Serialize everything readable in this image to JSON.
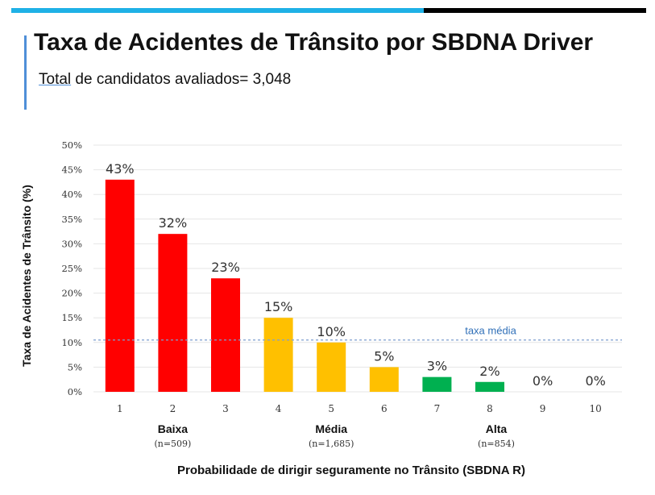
{
  "page": {
    "title": "Taxa de Acidentes de Trânsito por SBDNA Driver",
    "subtitle_total": "Total",
    "subtitle_rest": " de candidatos avaliados= 3,048"
  },
  "colors": {
    "top_bar_blue": "#1fb1e6",
    "top_bar_black": "#000000",
    "accent_bar": "#4f8fd8",
    "baixa": "#ff0000",
    "media": "#ffc000",
    "alta": "#00b050",
    "gridline": "#e6e6e6",
    "average_line": "#7f9fd0"
  },
  "chart_data": {
    "type": "bar",
    "categories": [
      "1",
      "2",
      "3",
      "4",
      "5",
      "6",
      "7",
      "8",
      "9",
      "10"
    ],
    "values": [
      43,
      32,
      23,
      15,
      10,
      5,
      3,
      2,
      0,
      0
    ],
    "data_labels": [
      "43%",
      "32%",
      "23%",
      "15%",
      "10%",
      "5%",
      "3%",
      "2%",
      "0%",
      "0%"
    ],
    "bar_groups": [
      "baixa",
      "baixa",
      "baixa",
      "media",
      "media",
      "media",
      "alta",
      "alta",
      "alta",
      "alta"
    ],
    "ylabel": "Taxa de Acidentes de Trânsito (%)",
    "xlabel": "Probabilidade de dirigir seguramente no Trânsito (SBDNA R)",
    "ylim": [
      0,
      50
    ],
    "yticks": [
      0,
      5,
      10,
      15,
      20,
      25,
      30,
      35,
      40,
      45,
      50
    ],
    "ytick_labels": [
      "0%",
      "5%",
      "10%",
      "15%",
      "20%",
      "25%",
      "30%",
      "35%",
      "40%",
      "45%",
      "50%"
    ],
    "grid": true,
    "reference_line": {
      "value": 10.5,
      "label": "taxa média"
    },
    "groups": [
      {
        "name": "Baixa",
        "n_label": "(n=509)",
        "categories": [
          "1",
          "2",
          "3"
        ]
      },
      {
        "name": "Média",
        "n_label": "(n=1,685)",
        "categories": [
          "4",
          "5",
          "6"
        ]
      },
      {
        "name": "Alta",
        "n_label": "(n=854)",
        "categories": [
          "7",
          "8",
          "9",
          "10"
        ]
      }
    ]
  }
}
